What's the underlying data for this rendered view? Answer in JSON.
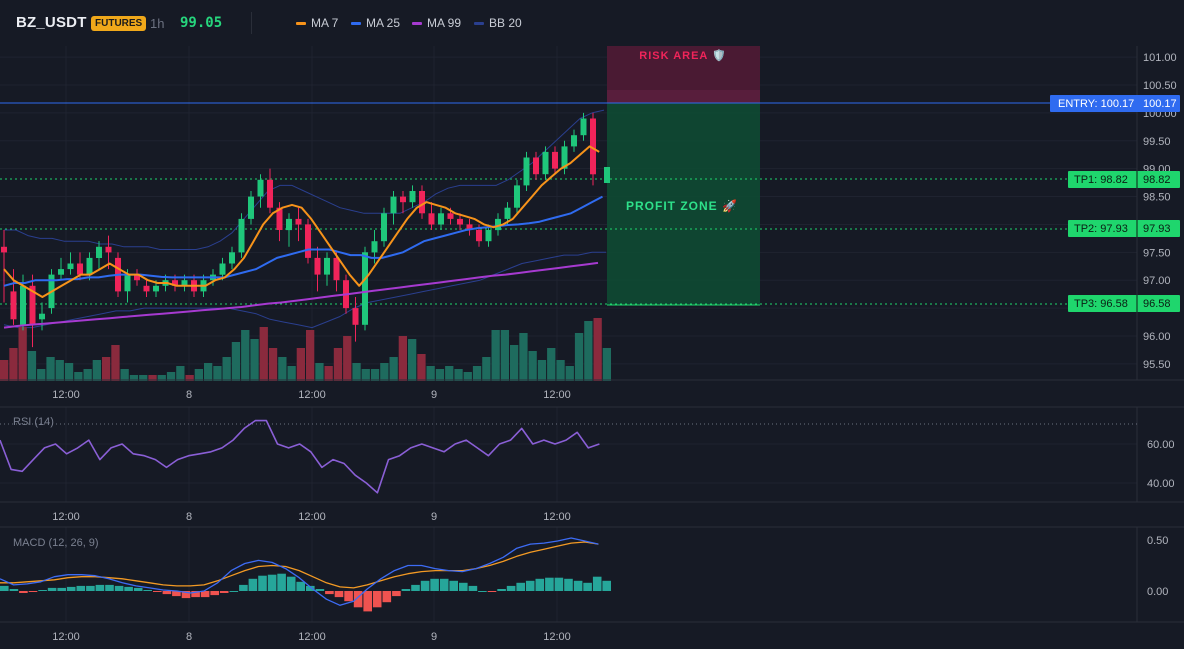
{
  "header": {
    "symbol": "BZ_USDT",
    "badge": "FUTURES",
    "timeframe": "1h",
    "price": "99.05",
    "legend": [
      {
        "label": "MA 7",
        "color": "#f7931a"
      },
      {
        "label": "MA 25",
        "color": "#2f6bf0"
      },
      {
        "label": "MA 99",
        "color": "#a63ad0"
      },
      {
        "label": "BB 20",
        "color": "#2a3f8f"
      }
    ]
  },
  "colors": {
    "up": "#1fc77b",
    "down": "#f0245a",
    "vol_up": "#1e6b5e",
    "vol_down": "#8a2a3d",
    "rsi": "#8a5fd6",
    "macd": "#3d6cf5",
    "signal": "#f39a24",
    "hist_up": "#26a69a",
    "hist_down": "#ef5350",
    "entry": "#2f6bf0",
    "tp": "#1fd66d"
  },
  "x_axis": {
    "ticks": [
      "12:00",
      "8",
      "12:00",
      "9",
      "12:00"
    ]
  },
  "annotations": {
    "risk_label": "RISK AREA 🛡️",
    "profit_label": "PROFIT ZONE 🚀",
    "entry_label": "ENTRY: 100.17",
    "entry_price": "100.17",
    "tp1_label": "TP1: 98.82",
    "tp1_price": "98.82",
    "tp2_label": "TP2: 97.93",
    "tp2_price": "97.93",
    "tp3_label": "TP3: 96.58",
    "tp3_price": "96.58"
  },
  "chart_data": [
    {
      "type": "candlestick",
      "title": "BZ_USDT",
      "ylim": [
        95.2,
        101.2
      ],
      "y_ticks": [
        "101.00",
        "100.50",
        "100.00",
        "99.50",
        "99.00",
        "98.50",
        "98.00",
        "97.50",
        "97.00",
        "96.50",
        "96.00",
        "95.50"
      ],
      "x_tick_labels": [
        "12:00",
        "8",
        "12:00",
        "9",
        "12:00"
      ],
      "candles": [
        [
          97.6,
          97.5,
          97.9,
          96.6
        ],
        [
          96.8,
          96.3,
          97.2,
          96.2
        ],
        [
          96.2,
          96.9,
          97.1,
          96.1
        ],
        [
          96.9,
          96.2,
          97.1,
          95.8
        ],
        [
          96.3,
          96.4,
          96.6,
          96.1
        ],
        [
          96.5,
          97.1,
          97.2,
          96.4
        ],
        [
          97.1,
          97.2,
          97.4,
          97.0
        ],
        [
          97.2,
          97.3,
          97.5,
          97.1
        ],
        [
          97.3,
          97.1,
          97.5,
          97.0
        ],
        [
          97.1,
          97.4,
          97.5,
          97.0
        ],
        [
          97.4,
          97.6,
          97.7,
          97.2
        ],
        [
          97.6,
          97.5,
          97.8,
          97.2
        ],
        [
          97.4,
          96.8,
          97.5,
          96.7
        ],
        [
          96.8,
          97.1,
          97.2,
          96.6
        ],
        [
          97.1,
          97.0,
          97.2,
          96.9
        ],
        [
          96.9,
          96.8,
          97.0,
          96.7
        ],
        [
          96.8,
          96.9,
          97.0,
          96.7
        ],
        [
          96.9,
          97.0,
          97.1,
          96.8
        ],
        [
          97.0,
          96.9,
          97.1,
          96.8
        ],
        [
          96.9,
          97.0,
          97.1,
          96.8
        ],
        [
          97.0,
          96.8,
          97.1,
          96.7
        ],
        [
          96.8,
          97.0,
          97.1,
          96.7
        ],
        [
          97.0,
          97.1,
          97.2,
          96.9
        ],
        [
          97.1,
          97.3,
          97.4,
          97.0
        ],
        [
          97.3,
          97.5,
          97.6,
          97.2
        ],
        [
          97.5,
          98.1,
          98.2,
          97.4
        ],
        [
          98.1,
          98.5,
          98.6,
          98.0
        ],
        [
          98.5,
          98.8,
          98.9,
          98.3
        ],
        [
          98.8,
          98.3,
          99.0,
          98.2
        ],
        [
          98.3,
          97.9,
          98.4,
          97.7
        ],
        [
          97.9,
          98.1,
          98.2,
          97.6
        ],
        [
          98.1,
          98.0,
          98.3,
          97.7
        ],
        [
          98.0,
          97.4,
          98.1,
          97.3
        ],
        [
          97.4,
          97.1,
          97.6,
          96.8
        ],
        [
          97.1,
          97.4,
          97.5,
          96.9
        ],
        [
          97.4,
          97.0,
          97.5,
          96.8
        ],
        [
          97.0,
          96.5,
          97.1,
          96.4
        ],
        [
          96.5,
          96.2,
          96.7,
          95.9
        ],
        [
          96.2,
          97.5,
          97.6,
          96.1
        ],
        [
          97.5,
          97.7,
          97.9,
          97.3
        ],
        [
          97.7,
          98.2,
          98.3,
          97.6
        ],
        [
          98.2,
          98.5,
          98.6,
          98.0
        ],
        [
          98.5,
          98.4,
          98.6,
          98.2
        ],
        [
          98.4,
          98.6,
          98.7,
          98.3
        ],
        [
          98.6,
          98.2,
          98.7,
          98.1
        ],
        [
          98.2,
          98.0,
          98.4,
          97.9
        ],
        [
          98.0,
          98.2,
          98.3,
          97.9
        ],
        [
          98.2,
          98.1,
          98.3,
          98.0
        ],
        [
          98.1,
          98.0,
          98.2,
          97.9
        ],
        [
          98.0,
          97.9,
          98.1,
          97.8
        ],
        [
          97.9,
          97.7,
          98.0,
          97.6
        ],
        [
          97.7,
          97.9,
          98.0,
          97.6
        ],
        [
          97.9,
          98.1,
          98.2,
          97.8
        ],
        [
          98.1,
          98.3,
          98.4,
          98.0
        ],
        [
          98.3,
          98.7,
          98.8,
          98.2
        ],
        [
          98.7,
          99.2,
          99.3,
          98.6
        ],
        [
          99.2,
          98.9,
          99.3,
          98.8
        ],
        [
          98.9,
          99.3,
          99.4,
          98.8
        ],
        [
          99.3,
          99.0,
          99.4,
          98.9
        ],
        [
          99.0,
          99.4,
          99.5,
          98.9
        ],
        [
          99.4,
          99.6,
          99.7,
          99.3
        ],
        [
          99.6,
          99.9,
          100.0,
          99.5
        ],
        [
          99.9,
          98.9,
          100.0,
          98.7
        ]
      ],
      "volumes": [
        [
          0.35,
          "down"
        ],
        [
          0.55,
          "down"
        ],
        [
          0.9,
          "down"
        ],
        [
          0.5,
          "up"
        ],
        [
          0.2,
          "up"
        ],
        [
          0.4,
          "up"
        ],
        [
          0.35,
          "up"
        ],
        [
          0.3,
          "up"
        ],
        [
          0.15,
          "up"
        ],
        [
          0.2,
          "up"
        ],
        [
          0.35,
          "up"
        ],
        [
          0.4,
          "down"
        ],
        [
          0.6,
          "down"
        ],
        [
          0.2,
          "up"
        ],
        [
          0.1,
          "up"
        ],
        [
          0.1,
          "up"
        ],
        [
          0.1,
          "down"
        ],
        [
          0.1,
          "up"
        ],
        [
          0.15,
          "up"
        ],
        [
          0.25,
          "up"
        ],
        [
          0.1,
          "down"
        ],
        [
          0.2,
          "up"
        ],
        [
          0.3,
          "up"
        ],
        [
          0.25,
          "up"
        ],
        [
          0.4,
          "up"
        ],
        [
          0.65,
          "up"
        ],
        [
          0.85,
          "up"
        ],
        [
          0.7,
          "up"
        ],
        [
          0.9,
          "down"
        ],
        [
          0.55,
          "down"
        ],
        [
          0.4,
          "up"
        ],
        [
          0.25,
          "up"
        ],
        [
          0.55,
          "down"
        ],
        [
          0.85,
          "down"
        ],
        [
          0.3,
          "up"
        ],
        [
          0.25,
          "down"
        ],
        [
          0.55,
          "down"
        ],
        [
          0.75,
          "down"
        ],
        [
          0.3,
          "up"
        ],
        [
          0.2,
          "up"
        ],
        [
          0.2,
          "up"
        ],
        [
          0.3,
          "up"
        ],
        [
          0.4,
          "up"
        ],
        [
          0.75,
          "down"
        ],
        [
          0.7,
          "up"
        ],
        [
          0.45,
          "down"
        ],
        [
          0.25,
          "up"
        ],
        [
          0.2,
          "up"
        ],
        [
          0.25,
          "up"
        ],
        [
          0.2,
          "up"
        ],
        [
          0.15,
          "up"
        ],
        [
          0.25,
          "up"
        ],
        [
          0.4,
          "up"
        ],
        [
          0.85,
          "up"
        ],
        [
          0.85,
          "up"
        ],
        [
          0.6,
          "up"
        ],
        [
          0.8,
          "up"
        ],
        [
          0.5,
          "up"
        ],
        [
          0.35,
          "up"
        ],
        [
          0.55,
          "up"
        ],
        [
          0.35,
          "up"
        ],
        [
          0.25,
          "up"
        ],
        [
          0.8,
          "up"
        ],
        [
          1.0,
          "up"
        ],
        [
          1.05,
          "down"
        ],
        [
          0.55,
          "up"
        ]
      ],
      "ma7": [
        97.2,
        97.0,
        96.9,
        96.8,
        96.7,
        96.8,
        96.9,
        97.0,
        97.1,
        97.1,
        97.2,
        97.3,
        97.2,
        97.1,
        97.1,
        97.0,
        96.95,
        96.95,
        96.9,
        96.9,
        96.9,
        96.9,
        97.0,
        97.05,
        97.2,
        97.4,
        97.7,
        98.0,
        98.2,
        98.3,
        98.35,
        98.3,
        98.1,
        97.85,
        97.6,
        97.35,
        97.1,
        96.9,
        97.1,
        97.35,
        97.6,
        97.85,
        98.1,
        98.3,
        98.4,
        98.35,
        98.3,
        98.2,
        98.15,
        98.1,
        98.0,
        97.95,
        98.0,
        98.1,
        98.3,
        98.5,
        98.7,
        98.85,
        99.0,
        99.1,
        99.25,
        99.4,
        99.3
      ],
      "ma25": [
        96.9,
        96.95,
        96.95,
        97.0,
        97.0,
        97.0,
        97.02,
        97.02,
        97.05,
        97.05,
        97.08,
        97.1,
        97.1,
        97.1,
        97.08,
        97.06,
        97.05,
        97.05,
        97.05,
        97.05,
        97.05,
        97.05,
        97.1,
        97.15,
        97.2,
        97.3,
        97.4,
        97.45,
        97.5,
        97.55,
        97.55,
        97.55,
        97.5,
        97.45,
        97.45,
        97.4,
        97.4,
        97.45,
        97.5,
        97.6,
        97.7,
        97.75,
        97.8,
        97.85,
        97.9,
        97.93,
        97.95,
        97.97,
        97.99,
        98.0,
        98.02,
        98.05,
        98.1,
        98.15,
        98.2,
        98.3,
        98.4,
        98.5
      ],
      "ma99": [
        96.15,
        96.18,
        96.2,
        96.22,
        96.24,
        96.26,
        96.28,
        96.3,
        96.32,
        96.34,
        96.36,
        96.38,
        96.4,
        96.42,
        96.44,
        96.46,
        96.48,
        96.5,
        96.52,
        96.55,
        96.58,
        96.6,
        96.63,
        96.66,
        96.69,
        96.72,
        96.75,
        96.78,
        96.81,
        96.84,
        96.87,
        96.9,
        96.93,
        96.96,
        96.99,
        97.02,
        97.05,
        97.08,
        97.1,
        97.13,
        97.16,
        97.19,
        97.22,
        97.25,
        97.28,
        97.31
      ],
      "bb_upper": [
        97.9,
        97.9,
        97.8,
        97.75,
        97.75,
        97.7,
        97.7,
        97.7,
        97.65,
        97.65,
        97.6,
        97.6,
        97.6,
        97.55,
        97.55,
        97.55,
        97.55,
        97.6,
        97.7,
        97.85,
        98.1,
        98.35,
        98.6,
        98.7,
        98.7,
        98.6,
        98.5,
        98.4,
        98.3,
        98.25,
        98.2,
        98.2,
        98.2,
        98.2,
        98.3,
        98.4,
        98.55,
        98.65,
        98.7,
        98.7,
        98.7,
        98.7,
        98.8,
        98.95,
        99.1,
        99.3,
        99.5,
        99.7,
        99.9,
        100.0,
        100.05
      ],
      "bb_lower": [
        96.2,
        96.15,
        96.15,
        96.2,
        96.25,
        96.3,
        96.35,
        96.4,
        96.45,
        96.45,
        96.5,
        96.5,
        96.5,
        96.5,
        96.5,
        96.5,
        96.5,
        96.45,
        96.4,
        96.3,
        96.25,
        96.2,
        96.15,
        96.25,
        96.35,
        96.5,
        96.6,
        96.65,
        96.7,
        96.75,
        96.8,
        96.85,
        96.9,
        96.95,
        97.0,
        97.1,
        97.2,
        97.3,
        97.35,
        97.4,
        97.45,
        97.45,
        97.5,
        97.5
      ],
      "entry": 100.17,
      "stop_zone": [
        100.17,
        101.2
      ],
      "targets": [
        98.82,
        97.93,
        96.58
      ]
    },
    {
      "type": "line",
      "title": "RSI (14)",
      "ylim": [
        30,
        75
      ],
      "y_ticks": [
        "60.00",
        "40.00"
      ],
      "overbought": 70,
      "values": [
        62,
        47,
        46,
        52,
        58,
        60,
        55,
        58,
        62,
        52,
        58,
        60,
        55,
        54,
        52,
        48,
        52,
        54,
        55,
        56,
        58,
        62,
        68,
        72,
        72,
        60,
        58,
        60,
        56,
        48,
        52,
        50,
        44,
        40,
        35,
        52,
        54,
        58,
        60,
        58,
        56,
        60,
        62,
        58,
        54,
        60,
        62,
        68,
        60,
        62,
        60,
        62,
        66,
        58,
        60
      ]
    },
    {
      "type": "line",
      "title": "MACD (12, 26, 9)",
      "ylim": [
        -0.3,
        0.6
      ],
      "y_ticks": [
        "0.50",
        "0.00"
      ],
      "macd": [
        0.12,
        0.06,
        0.07,
        0.09,
        0.14,
        0.16,
        0.16,
        0.15,
        0.12,
        0.08,
        0.05,
        0.03,
        0.01,
        0.0,
        -0.02,
        0.0,
        0.08,
        0.2,
        0.27,
        0.3,
        0.28,
        0.22,
        0.13,
        0.02,
        -0.08,
        -0.14,
        -0.1,
        0.02,
        0.12,
        0.2,
        0.25,
        0.25,
        0.22,
        0.2,
        0.19,
        0.22,
        0.27,
        0.33,
        0.42,
        0.46,
        0.47,
        0.49,
        0.52,
        0.49,
        0.46
      ],
      "signal": [
        0.08,
        0.08,
        0.09,
        0.1,
        0.11,
        0.13,
        0.14,
        0.14,
        0.13,
        0.12,
        0.1,
        0.08,
        0.06,
        0.05,
        0.05,
        0.06,
        0.1,
        0.15,
        0.2,
        0.24,
        0.25,
        0.24,
        0.2,
        0.14,
        0.08,
        0.04,
        0.03,
        0.06,
        0.1,
        0.14,
        0.17,
        0.19,
        0.2,
        0.2,
        0.2,
        0.22,
        0.25,
        0.29,
        0.34,
        0.38,
        0.41,
        0.44,
        0.47,
        0.48,
        0.46
      ],
      "hist": [
        0.05,
        0.02,
        -0.02,
        -0.01,
        0.01,
        0.03,
        0.03,
        0.04,
        0.05,
        0.05,
        0.06,
        0.06,
        0.05,
        0.04,
        0.03,
        0.01,
        -0.01,
        -0.03,
        -0.05,
        -0.07,
        -0.06,
        -0.06,
        -0.04,
        -0.02,
        0.0,
        0.06,
        0.12,
        0.15,
        0.16,
        0.17,
        0.14,
        0.09,
        0.05,
        0.02,
        -0.03,
        -0.06,
        -0.1,
        -0.16,
        -0.2,
        -0.16,
        -0.11,
        -0.05,
        0.02,
        0.06,
        0.1,
        0.12,
        0.12,
        0.1,
        0.08,
        0.05,
        0.0,
        -0.01,
        0.02,
        0.05,
        0.08,
        0.1,
        0.12,
        0.13,
        0.13,
        0.12,
        0.1,
        0.08,
        0.14,
        0.1
      ]
    }
  ]
}
